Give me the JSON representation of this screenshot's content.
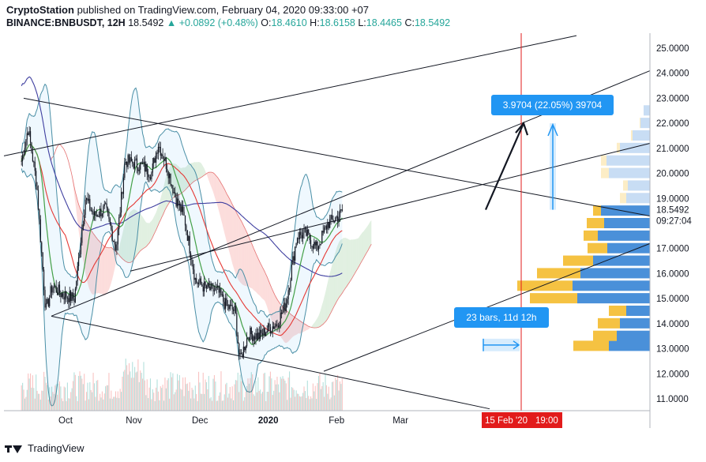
{
  "header": {
    "author": "CryptoStation",
    "published_text": "published on TradingView.com, February 04, 2020 09:33:00 +07",
    "symbol": "BINANCE:BNBUSDT, 12H",
    "last": "18.5492",
    "arrow": "▲",
    "change": "+0.0892 (+0.48%)",
    "o_label": "O:",
    "o_value": "18.4610",
    "h_label": "H:",
    "h_value": "18.6158",
    "l_label": "L:",
    "l_value": "18.4465",
    "c_label": "C:",
    "c_value": "18.5492"
  },
  "footer": {
    "brand": "TradingView"
  },
  "colors": {
    "up": "#26a69a",
    "down": "#131722",
    "accent": "#2196f3",
    "red_line": "#e53935",
    "green_line": "#43a047",
    "navy_line": "#3f3fa0",
    "vp_up": "#4a90d9",
    "vp_down": "#f5c242",
    "marker": "#e21b1b"
  },
  "chart_data": {
    "type": "candlestick",
    "y_axis": {
      "ylim": [
        10.6,
        25.5
      ],
      "tick_labels": [
        "25.0000",
        "24.0000",
        "23.0000",
        "22.0000",
        "21.0000",
        "20.0000",
        "19.0000",
        "17.0000",
        "16.0000",
        "15.0000",
        "14.0000",
        "13.0000",
        "12.0000",
        "11.0000"
      ],
      "current_price_label": "18.5492",
      "countdown_label": "09:27:04"
    },
    "x_axis": {
      "tick_labels": [
        "Oct",
        "Nov",
        "Dec",
        "2020",
        "Feb",
        "Mar"
      ],
      "marker_label": "15 Feb '20",
      "marker_time": "19:00"
    },
    "price_path": {
      "dates": [
        "2019-09-11",
        "2019-09-14",
        "2019-09-18",
        "2019-09-22",
        "2019-09-25",
        "2019-09-29",
        "2019-10-05",
        "2019-10-10",
        "2019-10-14",
        "2019-10-19",
        "2019-10-24",
        "2019-10-28",
        "2019-11-01",
        "2019-11-05",
        "2019-11-09",
        "2019-11-12",
        "2019-11-16",
        "2019-11-20",
        "2019-11-24",
        "2019-11-29",
        "2019-12-04",
        "2019-12-09",
        "2019-12-13",
        "2019-12-17",
        "2019-12-19",
        "2019-12-23",
        "2019-12-28",
        "2020-01-01",
        "2020-01-05",
        "2020-01-09",
        "2020-01-14",
        "2020-01-18",
        "2020-01-23",
        "2020-01-28",
        "2020-02-02",
        "2020-02-04"
      ],
      "close": [
        20.5,
        21.8,
        19.5,
        14.5,
        15.5,
        15.2,
        15.0,
        19.0,
        18.3,
        18.6,
        17.0,
        20.5,
        20.4,
        20.3,
        20.0,
        21.2,
        20.3,
        19.0,
        18.2,
        15.7,
        15.4,
        15.3,
        14.7,
        14.5,
        12.5,
        13.6,
        13.5,
        13.8,
        14.0,
        14.8,
        17.5,
        17.6,
        17.0,
        18.0,
        18.3,
        18.55
      ]
    },
    "annotations": {
      "projection_label": "3.9704 (22.05%) 39704",
      "range_label": "23 bars, 11d 12h"
    },
    "grid": false,
    "legend": "none"
  }
}
